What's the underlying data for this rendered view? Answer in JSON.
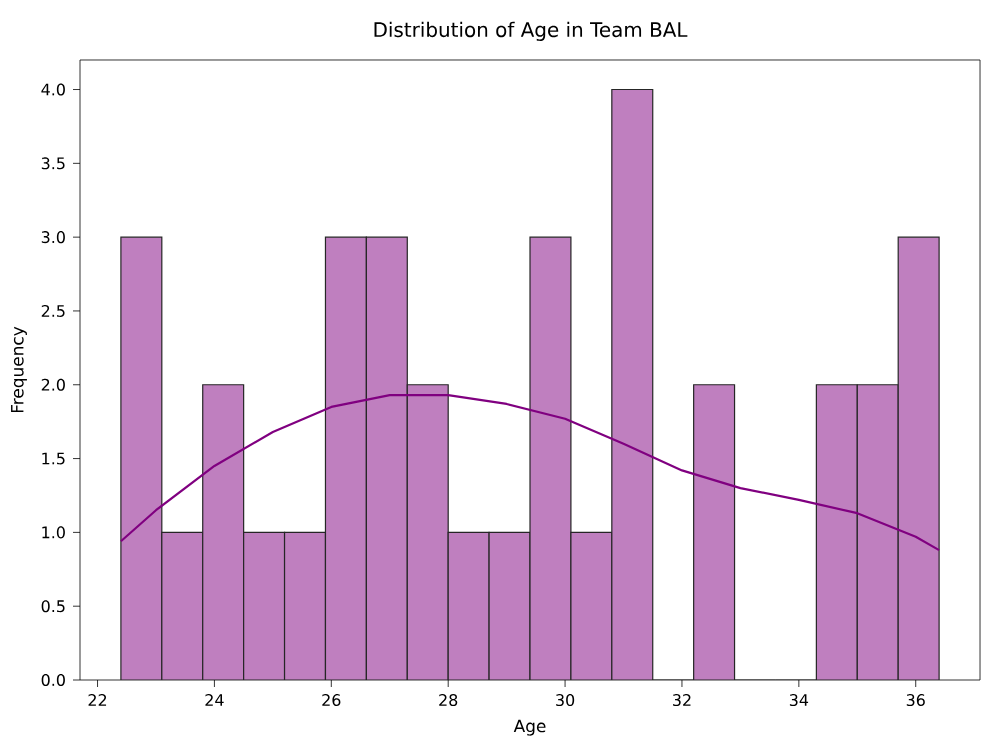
{
  "chart_data": {
    "type": "histogram",
    "title": "Distribution of Age in Team BAL",
    "xlabel": "Age",
    "ylabel": "Frequency",
    "bins": [
      22.4,
      23.1,
      23.8,
      24.5,
      25.2,
      25.9,
      26.6,
      27.3,
      28.0,
      28.7,
      29.4,
      30.1,
      30.8,
      31.5,
      32.2,
      32.9,
      33.6,
      34.3,
      35.0,
      35.7,
      36.4
    ],
    "values": [
      3,
      1,
      2,
      1,
      1,
      3,
      3,
      2,
      1,
      1,
      3,
      1,
      4,
      0,
      2,
      0,
      0,
      2,
      2,
      3
    ],
    "color": "#bf7fbf",
    "series": [
      {
        "type": "line",
        "color": "#800080",
        "x": [
          22.4,
          23,
          24,
          25,
          26,
          27,
          28,
          29,
          30,
          31,
          32,
          33,
          34,
          35,
          36,
          36.4
        ],
        "values": [
          0.94,
          1.15,
          1.45,
          1.68,
          1.85,
          1.93,
          1.93,
          1.87,
          1.77,
          1.6,
          1.42,
          1.3,
          1.22,
          1.13,
          0.97,
          0.88
        ]
      }
    ],
    "xlim": [
      21.7,
      37.1
    ],
    "ylim": [
      0,
      4.2
    ],
    "xticks": [
      22,
      24,
      26,
      28,
      30,
      32,
      34,
      36
    ],
    "yticks": [
      {
        "value": 0,
        "label": "0.0"
      },
      {
        "value": 0.5,
        "label": "0.5"
      },
      {
        "value": 1,
        "label": "1.0"
      },
      {
        "value": 1.5,
        "label": "1.5"
      },
      {
        "value": 2,
        "label": "2.0"
      },
      {
        "value": 2.5,
        "label": "2.5"
      },
      {
        "value": 3,
        "label": "3.0"
      },
      {
        "value": 3.5,
        "label": "3.5"
      },
      {
        "value": 4,
        "label": "4.0"
      }
    ],
    "tick_labels": "xy"
  }
}
